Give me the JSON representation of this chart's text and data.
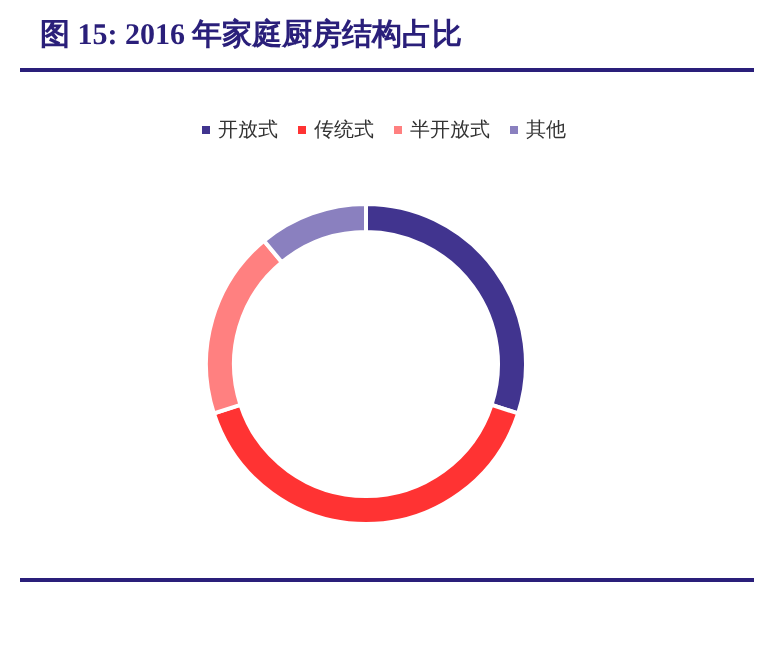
{
  "chart_data": {
    "type": "donut",
    "title": "图 15:  2016 年家庭厨房结构占比",
    "categories": [
      "开放式",
      "传统式",
      "半开放式",
      "其他"
    ],
    "values": [
      30,
      40,
      19,
      11
    ],
    "colors": [
      "#41348f",
      "#ff3333",
      "#ff8080",
      "#8a80bf"
    ],
    "legend": "top"
  }
}
